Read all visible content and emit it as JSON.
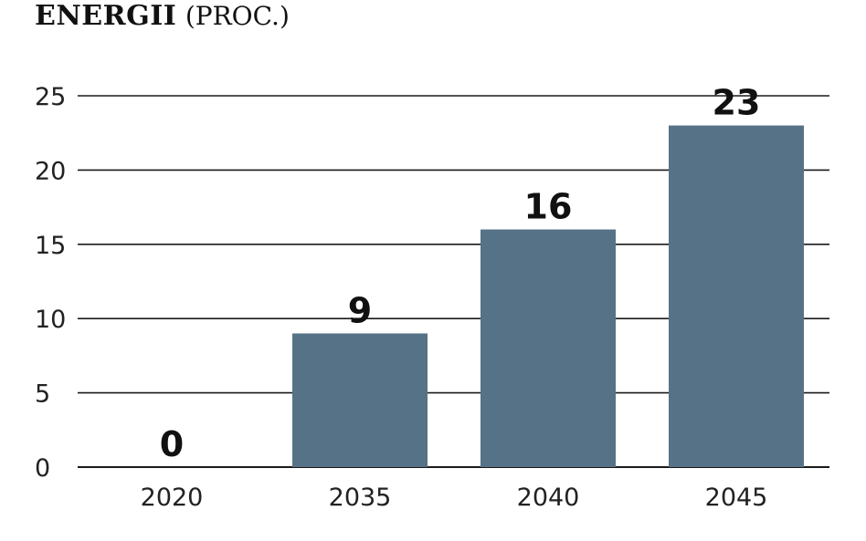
{
  "header": {
    "title_bold": "ENERGII",
    "title_rest": "(PROC.)"
  },
  "chart_data": {
    "type": "bar",
    "title": "ENERGII (PROC.)",
    "categories": [
      "2020",
      "2035",
      "2040",
      "2045"
    ],
    "values": [
      0,
      9,
      16,
      23
    ],
    "data_labels": [
      "0",
      "9",
      "16",
      "23"
    ],
    "yticks": [
      "0",
      "5",
      "10",
      "15",
      "20",
      "25"
    ],
    "ylim": [
      0,
      25
    ],
    "grid": true,
    "xlabel": "",
    "ylabel": "",
    "bar_color": "#567287"
  }
}
